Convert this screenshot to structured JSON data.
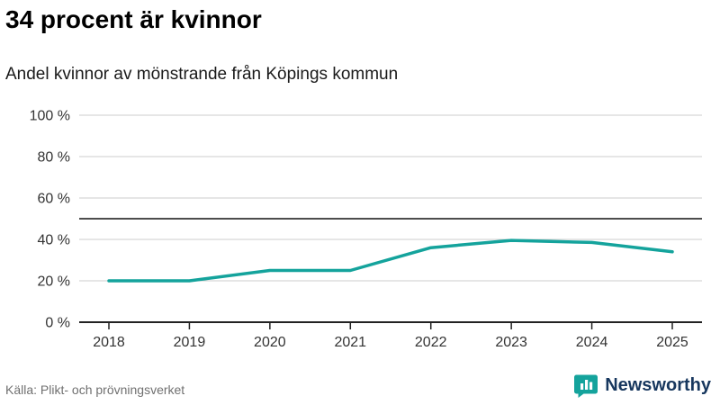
{
  "page": {
    "title": "34 procent är kvinnor",
    "subtitle": "Andel kvinnor av mönstrande från Köpings kommun",
    "source": "Källa: Plikt- och prövningsverket",
    "brand": "Newsworthy"
  },
  "colors": {
    "line": "#14a39c",
    "grid": "#cccccc",
    "axis": "#222222",
    "reference_line": "#4d4d4d",
    "tick_label": "#333333",
    "brand_text": "#17375e",
    "brand_icon": "#14a39c"
  },
  "chart_data": {
    "type": "line",
    "title": "34 procent är kvinnor",
    "subtitle": "Andel kvinnor av mönstrande från Köpings kommun",
    "x": [
      2018,
      2019,
      2020,
      2021,
      2022,
      2023,
      2024,
      2025
    ],
    "series": [
      {
        "name": "Andel kvinnor av mönstrande",
        "values": [
          20,
          20,
          25,
          25,
          36,
          39.5,
          38.5,
          34
        ]
      }
    ],
    "reference_line": 50,
    "ylim": [
      0,
      100
    ],
    "yticks": [
      0,
      20,
      40,
      60,
      80,
      100
    ],
    "ytick_suffix": " %",
    "grid": true,
    "legend_position": "none",
    "source": "Källa: Plikt- och prövningsverket"
  }
}
